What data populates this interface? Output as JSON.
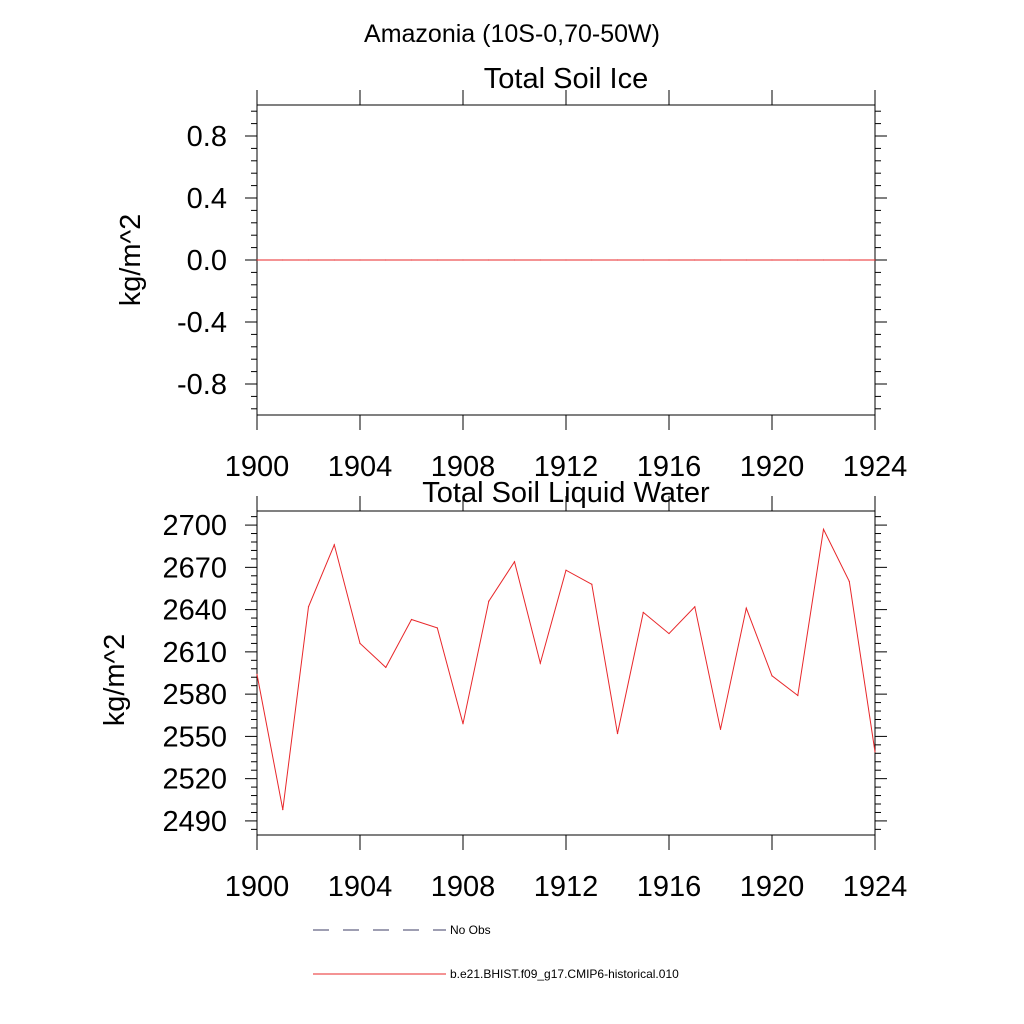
{
  "figure": {
    "main_title": "Amazonia (10S-0,70-50W)",
    "legend": [
      {
        "label": "No Obs",
        "color": "#3c3c64",
        "dash": true
      },
      {
        "label": "b.e21.BHIST.f09_g17.CMIP6-historical.010",
        "color": "#e8272a",
        "dash": false
      }
    ]
  },
  "chart_data": [
    {
      "type": "line",
      "title": "Total Soil Ice",
      "xlabel": "",
      "ylabel": "kg/m^2",
      "xlim": [
        1900,
        1924
      ],
      "ylim": [
        -1.0,
        1.0
      ],
      "x_ticks": [
        1900,
        1904,
        1908,
        1912,
        1916,
        1920,
        1924
      ],
      "y_ticks": [
        -0.8,
        -0.4,
        0.0,
        0.4,
        0.8
      ],
      "y_tick_labels": [
        "-0.8",
        "-0.4",
        "0.0",
        "0.4",
        "0.8"
      ],
      "grid": false,
      "series": [
        {
          "name": "b.e21.BHIST.f09_g17.CMIP6-historical.010",
          "color": "#e8272a",
          "x": [
            1900,
            1901,
            1902,
            1903,
            1904,
            1905,
            1906,
            1907,
            1908,
            1909,
            1910,
            1911,
            1912,
            1913,
            1914,
            1915,
            1916,
            1917,
            1918,
            1919,
            1920,
            1921,
            1922,
            1923,
            1924
          ],
          "y": [
            0,
            0,
            0,
            0,
            0,
            0,
            0,
            0,
            0,
            0,
            0,
            0,
            0,
            0,
            0,
            0,
            0,
            0,
            0,
            0,
            0,
            0,
            0,
            0,
            0
          ]
        }
      ]
    },
    {
      "type": "line",
      "title": "Total Soil Liquid Water",
      "xlabel": "",
      "ylabel": "kg/m^2",
      "xlim": [
        1900,
        1924
      ],
      "ylim": [
        2480,
        2710
      ],
      "x_ticks": [
        1900,
        1904,
        1908,
        1912,
        1916,
        1920,
        1924
      ],
      "y_ticks": [
        2490,
        2520,
        2550,
        2580,
        2610,
        2640,
        2670,
        2700
      ],
      "y_tick_labels": [
        "2490",
        "2520",
        "2550",
        "2580",
        "2610",
        "2640",
        "2670",
        "2700"
      ],
      "grid": false,
      "series": [
        {
          "name": "b.e21.BHIST.f09_g17.CMIP6-historical.010",
          "color": "#e8272a",
          "x": [
            1900,
            1901,
            1902,
            1903,
            1904,
            1905,
            1906,
            1907,
            1908,
            1909,
            1910,
            1911,
            1912,
            1913,
            1914,
            1915,
            1916,
            1917,
            1918,
            1919,
            1920,
            1921,
            1922,
            1923,
            1924
          ],
          "y": [
            2594,
            2498,
            2642,
            2686,
            2616,
            2599,
            2633,
            2627,
            2559,
            2646,
            2674,
            2602,
            2668,
            2658,
            2552,
            2638,
            2623,
            2642,
            2555,
            2641,
            2593,
            2579,
            2697,
            2660,
            2539
          ]
        }
      ]
    }
  ]
}
